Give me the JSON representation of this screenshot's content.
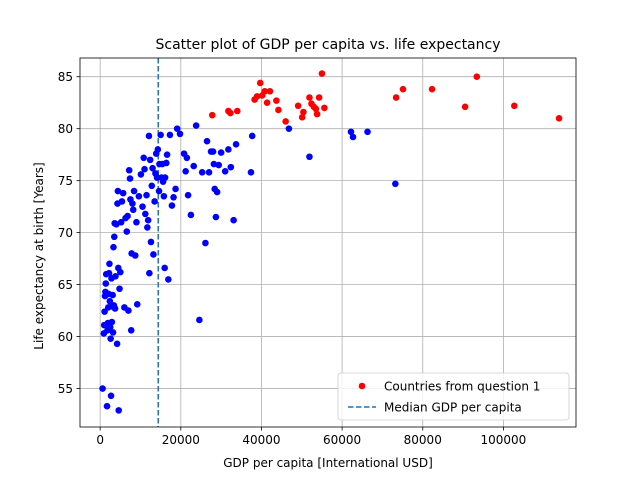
{
  "chart_data": {
    "type": "scatter",
    "title": "Scatter plot of GDP per capita vs. life expectancy",
    "xlabel": "GDP per capita [International USD]",
    "ylabel": "Life expectancy at birth [Years]",
    "xlim": [
      -5000,
      118000
    ],
    "ylim": [
      51.3,
      86.8
    ],
    "xticks": [
      0,
      20000,
      40000,
      60000,
      80000,
      100000
    ],
    "yticks": [
      55,
      60,
      65,
      70,
      75,
      80,
      85
    ],
    "grid": true,
    "legend_position": "lower-right",
    "legend": [
      {
        "label": "Countries from question 1",
        "kind": "marker",
        "color": "#ff0000"
      },
      {
        "label": "Median GDP per capita",
        "kind": "dashed-line",
        "color": "#1f77b4"
      }
    ],
    "median_gdp": 14400,
    "series": [
      {
        "name": "Countries from question 1",
        "color": "#ff0000",
        "points": [
          [
            27800,
            81.3
          ],
          [
            31800,
            81.7
          ],
          [
            32300,
            81.5
          ],
          [
            34000,
            81.7
          ],
          [
            38300,
            82.8
          ],
          [
            38900,
            83.1
          ],
          [
            39700,
            84.4
          ],
          [
            40200,
            83.2
          ],
          [
            40800,
            83.6
          ],
          [
            41400,
            82.5
          ],
          [
            42100,
            83.6
          ],
          [
            43700,
            82.7
          ],
          [
            44200,
            81.8
          ],
          [
            46000,
            80.7
          ],
          [
            49100,
            82.2
          ],
          [
            50100,
            81.1
          ],
          [
            50400,
            81.6
          ],
          [
            51900,
            83.0
          ],
          [
            52400,
            82.4
          ],
          [
            53000,
            82.1
          ],
          [
            53500,
            81.9
          ],
          [
            53800,
            81.4
          ],
          [
            54300,
            83.0
          ],
          [
            55000,
            85.3
          ],
          [
            55600,
            82.0
          ],
          [
            73400,
            83.0
          ],
          [
            75100,
            83.8
          ],
          [
            82300,
            83.8
          ],
          [
            90500,
            82.1
          ],
          [
            93400,
            85.0
          ],
          [
            102700,
            82.2
          ],
          [
            113800,
            81.0
          ]
        ]
      },
      {
        "name": "",
        "color": "#0000ff",
        "points": [
          [
            600,
            55.0
          ],
          [
            900,
            60.3
          ],
          [
            1000,
            61.1
          ],
          [
            1100,
            62.4
          ],
          [
            1200,
            63.9
          ],
          [
            1300,
            64.3
          ],
          [
            1400,
            65.1
          ],
          [
            1500,
            66.0
          ],
          [
            1700,
            53.3
          ],
          [
            1800,
            60.6
          ],
          [
            1900,
            61.3
          ],
          [
            2000,
            62.8
          ],
          [
            2100,
            64.1
          ],
          [
            2200,
            66.1
          ],
          [
            2300,
            67.0
          ],
          [
            2400,
            63.4
          ],
          [
            2500,
            60.9
          ],
          [
            2600,
            59.8
          ],
          [
            2700,
            54.3
          ],
          [
            2800,
            65.6
          ],
          [
            2900,
            61.4
          ],
          [
            3000,
            62.9
          ],
          [
            3100,
            64.0
          ],
          [
            3200,
            60.4
          ],
          [
            3300,
            68.6
          ],
          [
            3400,
            63.0
          ],
          [
            3500,
            69.6
          ],
          [
            3600,
            70.9
          ],
          [
            3700,
            62.7
          ],
          [
            3800,
            65.8
          ],
          [
            4000,
            70.8
          ],
          [
            4200,
            59.3
          ],
          [
            4300,
            72.8
          ],
          [
            4400,
            74.0
          ],
          [
            4500,
            66.6
          ],
          [
            4600,
            52.9
          ],
          [
            4800,
            64.6
          ],
          [
            5000,
            66.2
          ],
          [
            5200,
            71.0
          ],
          [
            5400,
            73.0
          ],
          [
            5700,
            73.8
          ],
          [
            6000,
            62.8
          ],
          [
            6300,
            71.4
          ],
          [
            6600,
            70.1
          ],
          [
            6800,
            71.6
          ],
          [
            7000,
            62.5
          ],
          [
            7200,
            76.0
          ],
          [
            7400,
            75.2
          ],
          [
            7500,
            73.2
          ],
          [
            7700,
            60.6
          ],
          [
            7800,
            68.0
          ],
          [
            8000,
            72.8
          ],
          [
            8200,
            72.2
          ],
          [
            8400,
            74.0
          ],
          [
            8700,
            67.8
          ],
          [
            9000,
            71.0
          ],
          [
            9200,
            63.1
          ],
          [
            9600,
            73.5
          ],
          [
            10100,
            75.6
          ],
          [
            10500,
            72.5
          ],
          [
            10800,
            77.2
          ],
          [
            11000,
            76.1
          ],
          [
            11200,
            71.8
          ],
          [
            11500,
            73.6
          ],
          [
            11700,
            70.5
          ],
          [
            11900,
            71.2
          ],
          [
            12100,
            79.3
          ],
          [
            12200,
            66.1
          ],
          [
            12400,
            77.0
          ],
          [
            12600,
            69.1
          ],
          [
            12800,
            74.5
          ],
          [
            13000,
            76.2
          ],
          [
            13200,
            67.9
          ],
          [
            13500,
            73.0
          ],
          [
            13700,
            75.7
          ],
          [
            13900,
            77.6
          ],
          [
            14100,
            75.3
          ],
          [
            14300,
            78.0
          ],
          [
            14600,
            74.0
          ],
          [
            14700,
            76.6
          ],
          [
            15000,
            79.4
          ],
          [
            15200,
            75.3
          ],
          [
            15400,
            76.6
          ],
          [
            15600,
            74.9
          ],
          [
            15800,
            73.5
          ],
          [
            16000,
            66.6
          ],
          [
            16100,
            75.3
          ],
          [
            16400,
            76.7
          ],
          [
            16600,
            77.5
          ],
          [
            16900,
            65.5
          ],
          [
            17300,
            79.4
          ],
          [
            17800,
            72.6
          ],
          [
            18200,
            73.4
          ],
          [
            18700,
            74.2
          ],
          [
            19100,
            80.0
          ],
          [
            19800,
            79.5
          ],
          [
            20800,
            77.6
          ],
          [
            21200,
            75.9
          ],
          [
            21500,
            77.2
          ],
          [
            21800,
            73.6
          ],
          [
            22500,
            71.7
          ],
          [
            23200,
            76.4
          ],
          [
            23800,
            80.3
          ],
          [
            24600,
            61.6
          ],
          [
            25300,
            75.8
          ],
          [
            26100,
            69.0
          ],
          [
            26500,
            78.8
          ],
          [
            27000,
            75.8
          ],
          [
            27500,
            77.8
          ],
          [
            28000,
            77.8
          ],
          [
            28200,
            76.6
          ],
          [
            28400,
            74.2
          ],
          [
            28700,
            71.5
          ],
          [
            29000,
            73.9
          ],
          [
            29400,
            76.5
          ],
          [
            30000,
            77.7
          ],
          [
            31000,
            75.9
          ],
          [
            31800,
            78.0
          ],
          [
            32400,
            76.3
          ],
          [
            33100,
            71.2
          ],
          [
            33700,
            78.5
          ],
          [
            37400,
            75.8
          ],
          [
            37700,
            79.3
          ],
          [
            46800,
            80.0
          ],
          [
            51900,
            77.3
          ],
          [
            62200,
            79.7
          ],
          [
            62700,
            79.2
          ],
          [
            66300,
            79.7
          ],
          [
            73200,
            74.7
          ]
        ]
      }
    ]
  }
}
